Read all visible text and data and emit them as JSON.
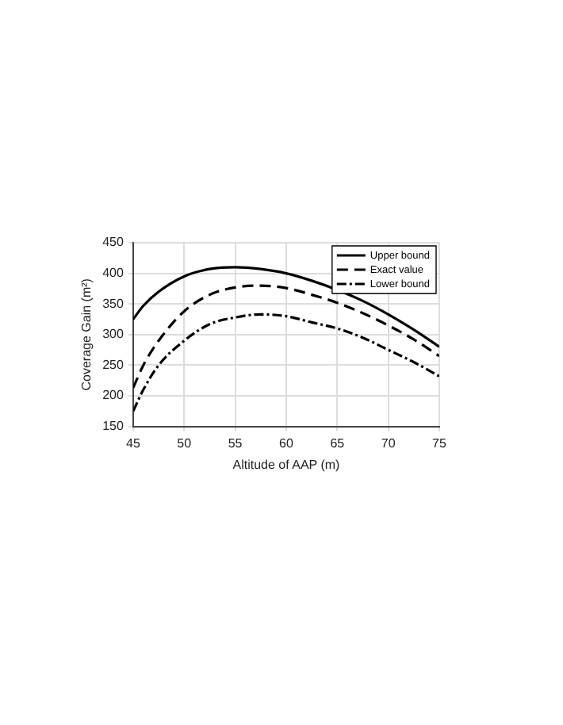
{
  "chart_data": {
    "type": "line",
    "xlabel": "Altitude of AAP (m)",
    "ylabel": "Coverage Gain (m²)",
    "x": [
      45,
      46,
      47.5,
      50,
      52.5,
      55,
      57.5,
      60,
      62.5,
      65,
      67.5,
      70,
      72.5,
      75
    ],
    "series": [
      {
        "name": "Upper bound",
        "color": "#000000",
        "line_style": "solid",
        "values": [
          325,
          347,
          370,
          395,
          407,
          410,
          407,
          400,
          388,
          373,
          355,
          333,
          308,
          280
        ]
      },
      {
        "name": "Exact value",
        "color": "#000000",
        "line_style": "dashed",
        "values": [
          213,
          250,
          290,
          338,
          365,
          377,
          380,
          376,
          365,
          352,
          335,
          315,
          292,
          265
        ]
      },
      {
        "name": "Lower bound",
        "color": "#000000",
        "line_style": "dotted",
        "values": [
          175,
          210,
          250,
          290,
          317,
          328,
          333,
          330,
          320,
          310,
          295,
          275,
          255,
          232
        ]
      }
    ],
    "xlim": [
      45,
      75
    ],
    "xticks": [
      45,
      50,
      55,
      60,
      65,
      70,
      75
    ],
    "ylim": [
      150,
      450
    ],
    "yticks": [
      150,
      200,
      250,
      300,
      350,
      400,
      450
    ],
    "grid": true,
    "legend": "top right",
    "marker": "none"
  }
}
